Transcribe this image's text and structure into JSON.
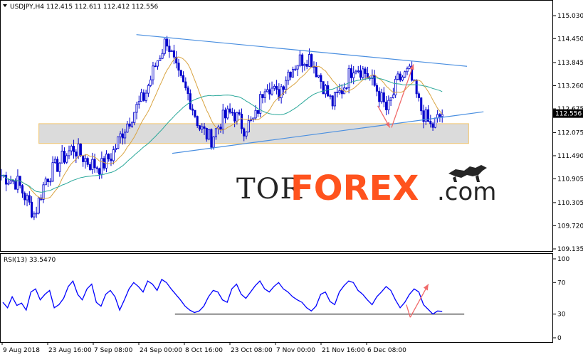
{
  "header": {
    "symbol_text": "USDJPY,H4  112.415 112.611 112.412 112.556",
    "rsi_text": "RSI(13) 33.5470"
  },
  "watermark": {
    "part1": "TOR",
    "part2": "FOREX",
    "part3": ".com",
    "accent": "#ff4a12",
    "icon": "bull-bear-icon"
  },
  "colors": {
    "candle": "#0000cc",
    "ma_fast": "#d9a441",
    "ma_slow": "#2aa89a",
    "trendline": "#4a8fe0",
    "arrow": "#f06a6a",
    "support_fill": "#d8d8d8",
    "support_border": "#f0c060",
    "rsi_line": "#0000ff",
    "price_tag_bg": "#000000"
  },
  "chart_data": [
    {
      "type": "candlestick",
      "title": "USDJPY,H4",
      "ohlc_current": {
        "open": 112.415,
        "high": 112.611,
        "low": 112.412,
        "close": 112.556
      },
      "ylim": [
        109.135,
        115.03
      ],
      "y_ticks": [
        115.03,
        114.45,
        113.845,
        113.26,
        112.675,
        112.075,
        111.49,
        110.905,
        110.305,
        109.72,
        109.135
      ],
      "current_price_label": "112.556",
      "x_ticks": [
        "9 Aug 2018",
        "23 Aug 16:00",
        "7 Sep 08:00",
        "24 Sep 00:00",
        "8 Oct 16:00",
        "23 Oct 08:00",
        "7 Nov 00:00",
        "21 Nov 16:00",
        "6 Dec 08:00"
      ],
      "close_path_anchors": [
        [
          0,
          111.0
        ],
        [
          0.03,
          110.8
        ],
        [
          0.06,
          110.0
        ],
        [
          0.08,
          110.9
        ],
        [
          0.11,
          111.4
        ],
        [
          0.13,
          111.7
        ],
        [
          0.16,
          111.3
        ],
        [
          0.18,
          111.2
        ],
        [
          0.2,
          111.5
        ],
        [
          0.22,
          112.1
        ],
        [
          0.24,
          112.6
        ],
        [
          0.26,
          113.0
        ],
        [
          0.28,
          113.8
        ],
        [
          0.3,
          114.45
        ],
        [
          0.32,
          113.5
        ],
        [
          0.34,
          113.0
        ],
        [
          0.36,
          112.2
        ],
        [
          0.38,
          111.9
        ],
        [
          0.4,
          112.4
        ],
        [
          0.42,
          112.6
        ],
        [
          0.44,
          112.2
        ],
        [
          0.46,
          112.4
        ],
        [
          0.48,
          113.4
        ],
        [
          0.5,
          113.0
        ],
        [
          0.52,
          113.6
        ],
        [
          0.54,
          113.9
        ],
        [
          0.56,
          114.0
        ],
        [
          0.58,
          113.4
        ],
        [
          0.6,
          112.8
        ],
        [
          0.62,
          113.2
        ],
        [
          0.64,
          113.8
        ],
        [
          0.66,
          113.6
        ],
        [
          0.68,
          113.2
        ],
        [
          0.7,
          112.6
        ],
        [
          0.72,
          113.4
        ],
        [
          0.74,
          113.6
        ],
        [
          0.76,
          112.7
        ],
        [
          0.78,
          112.2
        ],
        [
          0.8,
          112.556
        ]
      ],
      "moving_averages": [
        {
          "name": "",
          "color": "#d9a441"
        },
        {
          "name": "",
          "color": "#2aa89a"
        }
      ],
      "annotations": {
        "resistance_line": {
          "from": [
            0.245,
            114.55
          ],
          "to": [
            0.845,
            113.75
          ]
        },
        "support_line": {
          "from": [
            0.31,
            111.55
          ],
          "to": [
            0.875,
            112.6
          ]
        },
        "support_zone": {
          "y_top": 112.3,
          "y_bottom": 111.8,
          "x_from": 0.068,
          "x_to": 0.848
        },
        "arrows": [
          {
            "from": [
              0.683,
              112.75
            ],
            "to": [
              0.705,
              112.2
            ]
          },
          {
            "from": [
              0.708,
              112.2
            ],
            "to": [
              0.748,
              113.8
            ]
          }
        ]
      }
    },
    {
      "type": "line",
      "title": "RSI(13)",
      "current_value": 33.547,
      "ylim": [
        0,
        100
      ],
      "y_ticks": [
        100,
        70,
        30,
        0
      ],
      "values": [
        45,
        38,
        52,
        41,
        44,
        35,
        58,
        62,
        48,
        55,
        60,
        38,
        42,
        50,
        65,
        72,
        55,
        48,
        62,
        68,
        45,
        40,
        55,
        60,
        52,
        35,
        48,
        62,
        70,
        65,
        58,
        72,
        68,
        60,
        74,
        70,
        62,
        55,
        48,
        40,
        35,
        32,
        34,
        40,
        52,
        60,
        58,
        48,
        45,
        62,
        68,
        55,
        50,
        58,
        66,
        72,
        62,
        58,
        65,
        70,
        62,
        58,
        52,
        48,
        45,
        38,
        34,
        40,
        55,
        58,
        46,
        42,
        58,
        66,
        72,
        70,
        60,
        55,
        48,
        42,
        52,
        58,
        65,
        60,
        48,
        38,
        45,
        55,
        62,
        58,
        42,
        36,
        30,
        34,
        33.547
      ],
      "horizontal_line": 30
    }
  ]
}
